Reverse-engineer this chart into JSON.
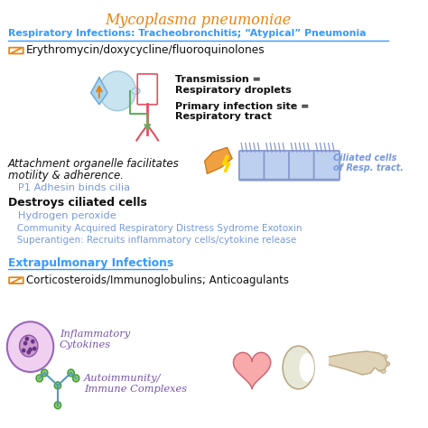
{
  "title": "Mycoplasma pneumoniae",
  "title_color": "#E8820C",
  "bg_color": "#ffffff",
  "section1_header": "Respiratory Infections: Tracheobronchitis; “Atypical” Pneumonia",
  "section1_color": "#3399FF",
  "drug1": "Erythromycin/doxycycline/fluoroquinolones",
  "drug1_color": "#111111",
  "pill_color": "#E8820C",
  "transmission_text": "Transmission =\nRespiratory droplets",
  "infection_site_text": "Primary infection site =\nRespiratory tract",
  "black_color": "#111111",
  "attach_line1": "Attachment organelle facilitates",
  "attach_line2": "motility & adherence.",
  "p1_text": "   P1 Adhesin binds cilia",
  "p1_color": "#7799DD",
  "destroys_text": "Destroys ciliated cells",
  "h2o2_text": "   Hydrogen peroxide",
  "cards_text": "   Community Acquired Respiratory Distress Sydrome Exotoxin",
  "super_text": "   Superantigen: Recruits inflammatory cells/cytokine release",
  "blue_color": "#7799DD",
  "section2_header": "Extrapulmonary Infections",
  "section2_color": "#3399FF",
  "drug2_text": "Corticosteroids/Immunoglobulins; Anticoagulants",
  "inflam_text": "Inflammatory\nCytokines",
  "autoimmune_text": "Autoimmunity/\nImmune Complexes",
  "purple_color": "#7755AA",
  "ciliated_label1": "Ciliated cells",
  "ciliated_label2": "of Resp. tract.",
  "ciliated_color": "#7799DD",
  "cell_fill": "#BDD0F0",
  "cell_edge": "#8899CC"
}
